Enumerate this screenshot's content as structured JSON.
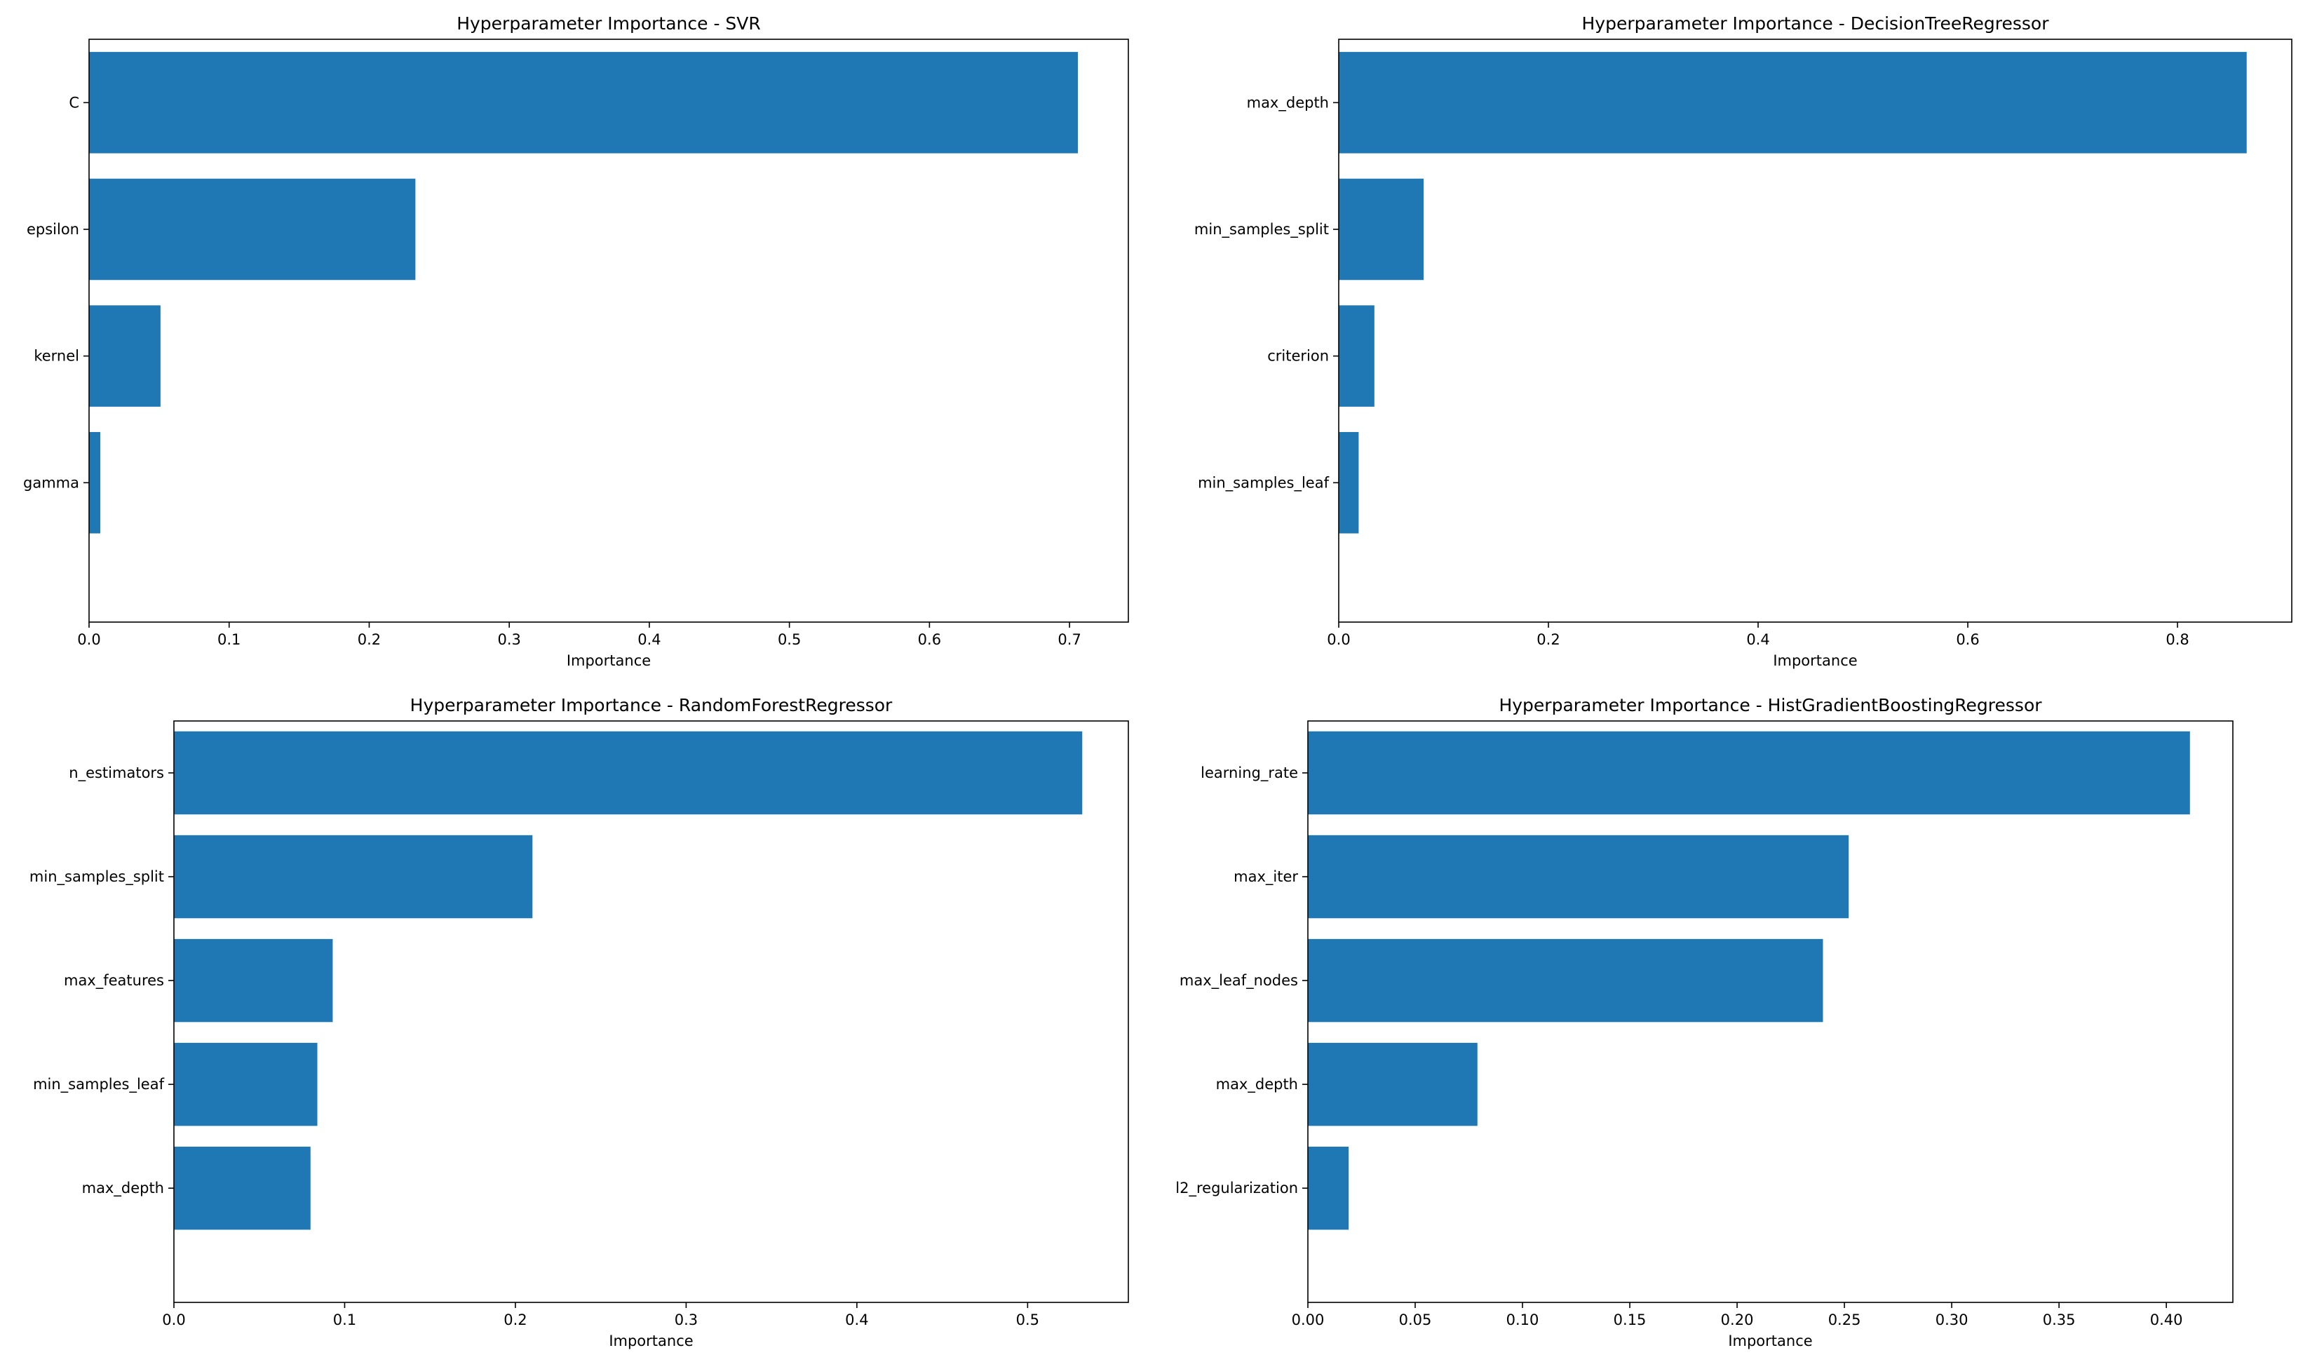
{
  "chart_data": [
    {
      "type": "bar",
      "orientation": "horizontal",
      "title": "Hyperparameter Importance - SVR",
      "xlabel": "Importance",
      "ylabel": "",
      "categories": [
        "C",
        "epsilon",
        "kernel",
        "gamma"
      ],
      "values": [
        0.706,
        0.233,
        0.051,
        0.008
      ],
      "xlim": [
        0,
        0.742
      ],
      "xticks": [
        0,
        0.1,
        0.2,
        0.3,
        0.4,
        0.5,
        0.6,
        0.7
      ],
      "xtick_labels": [
        "0.0",
        "0.1",
        "0.2",
        "0.3",
        "0.4",
        "0.5",
        "0.6",
        "0.7"
      ],
      "color": "#1f77b4",
      "grid": false
    },
    {
      "type": "bar",
      "orientation": "horizontal",
      "title": "Hyperparameter Importance - DecisionTreeRegressor",
      "xlabel": "Importance",
      "ylabel": "",
      "categories": [
        "max_depth",
        "min_samples_split",
        "criterion",
        "min_samples_leaf"
      ],
      "values": [
        0.866,
        0.081,
        0.034,
        0.019
      ],
      "xlim": [
        0,
        0.909
      ],
      "xticks": [
        0,
        0.2,
        0.4,
        0.6,
        0.8
      ],
      "xtick_labels": [
        "0.0",
        "0.2",
        "0.4",
        "0.6",
        "0.8"
      ],
      "color": "#1f77b4",
      "grid": false
    },
    {
      "type": "bar",
      "orientation": "horizontal",
      "title": "Hyperparameter Importance - RandomForestRegressor",
      "xlabel": "Importance",
      "ylabel": "",
      "categories": [
        "n_estimators",
        "min_samples_split",
        "max_features",
        "min_samples_leaf",
        "max_depth"
      ],
      "values": [
        0.532,
        0.21,
        0.093,
        0.084,
        0.08
      ],
      "xlim": [
        0,
        0.559
      ],
      "xticks": [
        0,
        0.1,
        0.2,
        0.3,
        0.4,
        0.5
      ],
      "xtick_labels": [
        "0.0",
        "0.1",
        "0.2",
        "0.3",
        "0.4",
        "0.5"
      ],
      "color": "#1f77b4",
      "grid": false
    },
    {
      "type": "bar",
      "orientation": "horizontal",
      "title": "Hyperparameter Importance - HistGradientBoostingRegressor",
      "xlabel": "Importance",
      "ylabel": "",
      "categories": [
        "learning_rate",
        "max_iter",
        "max_leaf_nodes",
        "max_depth",
        "l2_regularization"
      ],
      "values": [
        0.411,
        0.252,
        0.24,
        0.079,
        0.019
      ],
      "xlim": [
        0,
        0.431
      ],
      "xticks": [
        0,
        0.05,
        0.1,
        0.15,
        0.2,
        0.25,
        0.3,
        0.35,
        0.4
      ],
      "xtick_labels": [
        "0.00",
        "0.05",
        "0.10",
        "0.15",
        "0.20",
        "0.25",
        "0.30",
        "0.35",
        "0.40"
      ],
      "color": "#1f77b4",
      "grid": false
    }
  ]
}
